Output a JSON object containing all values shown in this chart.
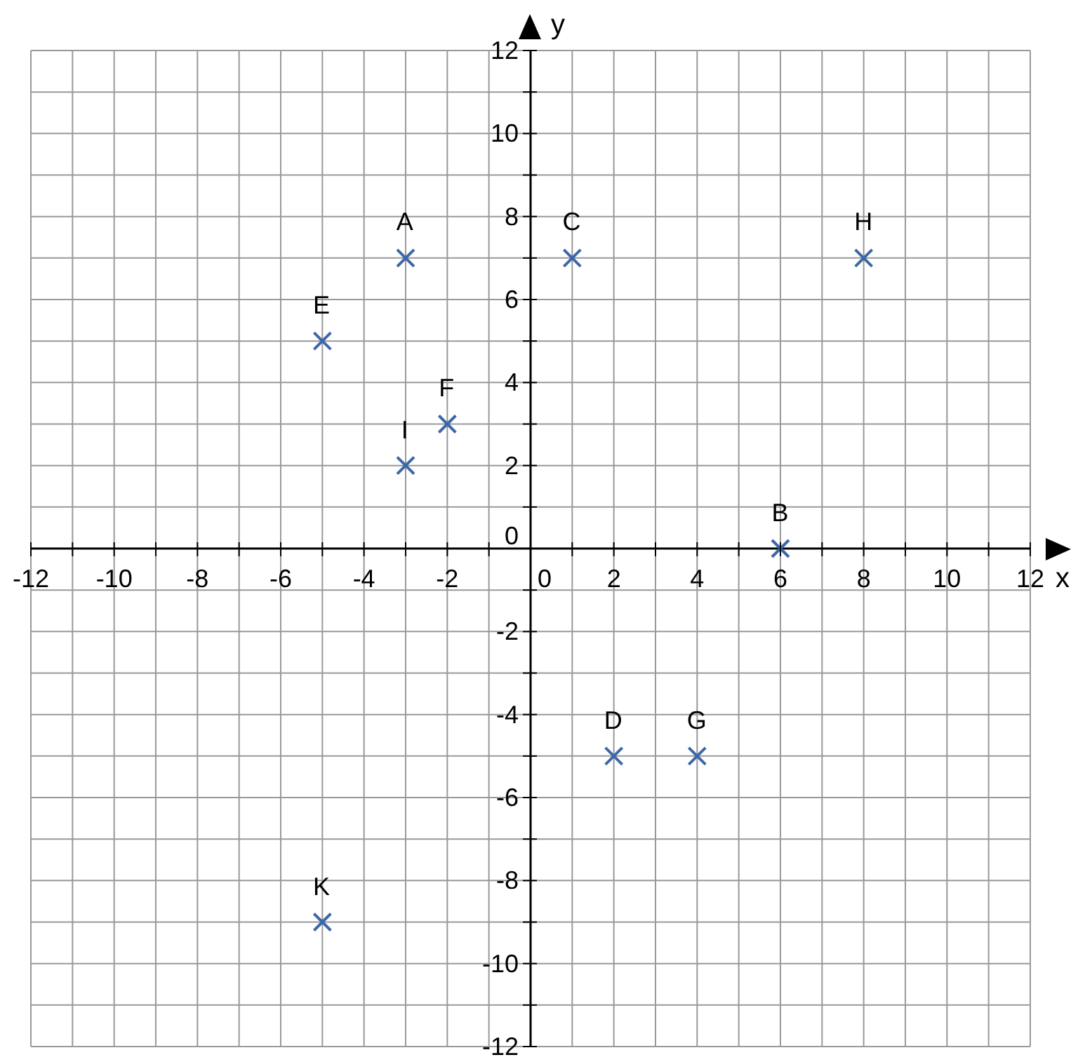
{
  "chart_data": {
    "type": "scatter",
    "xlabel": "x",
    "ylabel": "y",
    "x": [
      -3,
      6,
      1,
      2,
      -5,
      -2,
      4,
      8,
      -3,
      -5
    ],
    "values": [
      7,
      0,
      7,
      -5,
      5,
      3,
      -5,
      7,
      2,
      -9
    ],
    "color": "#3d67a8",
    "marker": "cross",
    "grid": true,
    "xlim": [
      -12,
      12
    ],
    "ylim": [
      -12,
      12
    ],
    "xticks": [
      -12,
      {
        "value": -11,
        "label": null
      },
      -10,
      {
        "value": -9,
        "label": null
      },
      -8,
      {
        "value": -7,
        "label": null
      },
      -6,
      {
        "value": -5,
        "label": null
      },
      -4,
      {
        "value": -3,
        "label": null
      },
      -2,
      {
        "value": -1,
        "label": null
      },
      0,
      {
        "value": 1,
        "label": null
      },
      2,
      {
        "value": 3,
        "label": null
      },
      4,
      {
        "value": 5,
        "label": null
      },
      6,
      {
        "value": 7,
        "label": null
      },
      8,
      {
        "value": 9,
        "label": null
      },
      10,
      {
        "value": 11,
        "label": null
      },
      12
    ],
    "yticks": [
      -12,
      {
        "value": -11,
        "label": null
      },
      -10,
      {
        "value": -9,
        "label": null
      },
      -8,
      {
        "value": -7,
        "label": null
      },
      -6,
      {
        "value": -5,
        "label": null
      },
      -4,
      {
        "value": -3,
        "label": null
      },
      -2,
      {
        "value": -1,
        "label": null
      },
      0,
      {
        "value": 1,
        "label": null
      },
      2,
      {
        "value": 3,
        "label": null
      },
      4,
      {
        "value": 5,
        "label": null
      },
      6,
      {
        "value": 7,
        "label": null
      },
      8,
      {
        "value": 9,
        "label": null
      },
      10,
      {
        "value": 11,
        "label": null
      },
      12
    ],
    "annotations": [
      {
        "text": "A",
        "x": -3,
        "y": 7
      },
      {
        "text": "B",
        "x": 6,
        "y": 0
      },
      {
        "text": "C",
        "x": 1,
        "y": 7
      },
      {
        "text": "D",
        "x": 2,
        "y": -5
      },
      {
        "text": "E",
        "x": -5,
        "y": 5
      },
      {
        "text": "F",
        "x": -2,
        "y": 3
      },
      {
        "text": "G",
        "x": 4,
        "y": -5
      },
      {
        "text": "H",
        "x": 8,
        "y": 7
      },
      {
        "text": "I",
        "x": -3,
        "y": 2
      },
      {
        "text": "K",
        "x": -5,
        "y": -9
      }
    ]
  }
}
